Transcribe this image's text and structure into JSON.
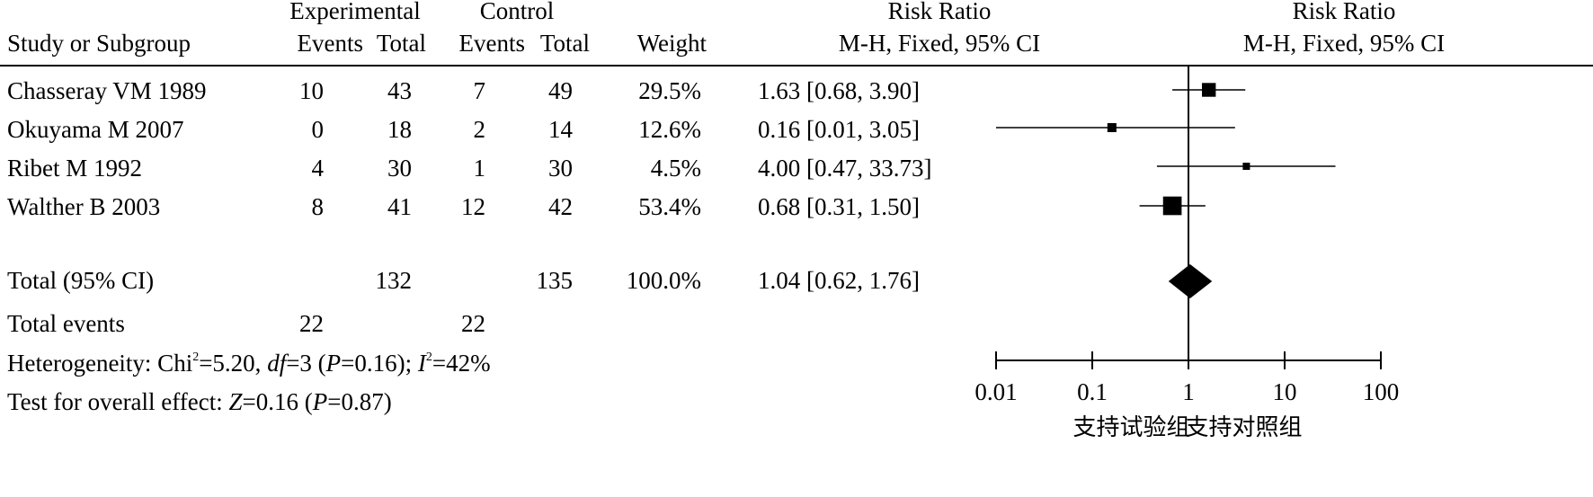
{
  "header": {
    "study": "Study or Subgroup",
    "exp_group": "Experimental",
    "ctrl_group": "Control",
    "events": "Events",
    "total": "Total",
    "weight": "Weight",
    "rr_title": "Risk Ratio",
    "rr_method": "M-H, Fixed, 95% CI",
    "plot_title": "Risk Ratio",
    "plot_method": "M-H, Fixed, 95% CI"
  },
  "rows": [
    {
      "study": "Chasseray VM 1989",
      "exp_events": "10",
      "exp_total": "43",
      "ctrl_events": "7",
      "ctrl_total": "49",
      "weight": "29.5%",
      "ci": "1.63 [0.68, 3.90]"
    },
    {
      "study": "Okuyama M 2007",
      "exp_events": "0",
      "exp_total": "18",
      "ctrl_events": "2",
      "ctrl_total": "14",
      "weight": "12.6%",
      "ci": "0.16 [0.01, 3.05]"
    },
    {
      "study": "Ribet M 1992",
      "exp_events": "4",
      "exp_total": "30",
      "ctrl_events": "1",
      "ctrl_total": "30",
      "weight": "4.5%",
      "ci": "4.00 [0.47, 33.73]"
    },
    {
      "study": "Walther B 2003",
      "exp_events": "8",
      "exp_total": "41",
      "ctrl_events": "12",
      "ctrl_total": "42",
      "weight": "53.4%",
      "ci": "0.68 [0.31, 1.50]"
    }
  ],
  "total": {
    "label": "Total (95% CI)",
    "exp_total": "132",
    "ctrl_total": "135",
    "weight": "100.0%",
    "ci": "1.04 [0.62, 1.76]"
  },
  "total_events": {
    "label": "Total events",
    "exp_events": "22",
    "ctrl_events": "22"
  },
  "heterogeneity": {
    "prefix": "Heterogeneity: Chi",
    "sup1": "2",
    "chi": "=5.20, ",
    "df_label": "df",
    "df_val": "=3 (",
    "p_label": "P",
    "p_val": "=0.16); ",
    "i_label": "I",
    "sup2": "2",
    "i_val": "=42%"
  },
  "overall": {
    "prefix": "Test for overall effect: ",
    "z_label": "Z",
    "z_val": "=0.16 (",
    "p_label": "P",
    "p_val": "=0.87)"
  },
  "chart_data": {
    "type": "forest",
    "scale": "log",
    "xlim": [
      0.01,
      100
    ],
    "ticks": [
      0.01,
      0.1,
      1,
      10,
      100
    ],
    "tick_labels": [
      "0.01",
      "0.1",
      "1",
      "10",
      "100"
    ],
    "x_left_label": "支持试验组",
    "x_right_label": "支持对照组",
    "studies": [
      {
        "name": "Chasseray VM 1989",
        "rr": 1.63,
        "lo": 0.68,
        "hi": 3.9,
        "weight": 29.5
      },
      {
        "name": "Okuyama M 2007",
        "rr": 0.16,
        "lo": 0.01,
        "hi": 3.05,
        "weight": 12.6
      },
      {
        "name": "Ribet M 1992",
        "rr": 4.0,
        "lo": 0.47,
        "hi": 33.73,
        "weight": 4.5
      },
      {
        "name": "Walther B 2003",
        "rr": 0.68,
        "lo": 0.31,
        "hi": 1.5,
        "weight": 53.4
      }
    ],
    "pooled": {
      "rr": 1.04,
      "lo": 0.62,
      "hi": 1.76
    }
  }
}
